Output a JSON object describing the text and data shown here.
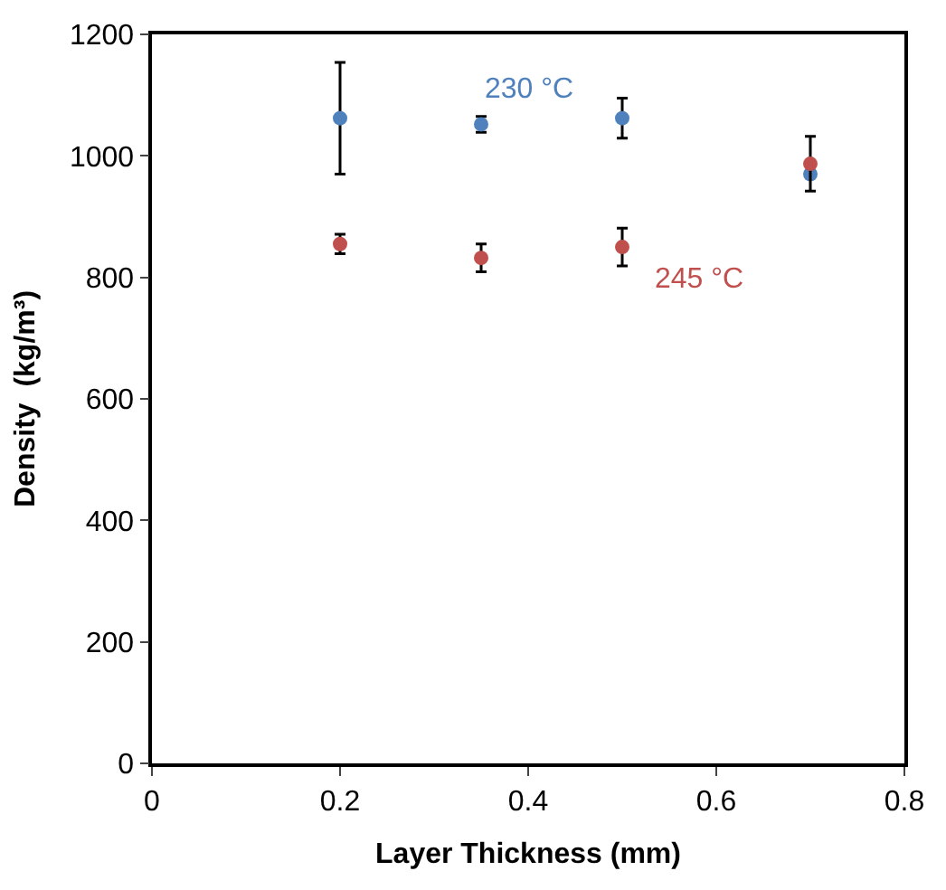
{
  "chart_data": {
    "type": "scatter",
    "xlabel": "Layer Thickness (mm)",
    "ylabel": "Density  (kg/m³)",
    "x": [
      0.2,
      0.35,
      0.5,
      0.7
    ],
    "series": [
      {
        "color": "#4f81bd",
        "values": [
          1062,
          1052,
          1062,
          970
        ],
        "errors": [
          92,
          13,
          33,
          null
        ]
      },
      {
        "color": "#c0504d",
        "values": [
          855,
          832,
          850,
          987
        ],
        "errors": [
          16,
          23,
          31,
          45
        ]
      }
    ],
    "annotations": [
      "230 °C",
      "245 °C"
    ],
    "xlim": [
      0,
      0.8
    ],
    "xticks": [
      0,
      0.2,
      0.4,
      0.6,
      0.8
    ],
    "ylim": [
      0,
      1200
    ],
    "yticks": [
      0,
      200,
      400,
      600,
      800,
      1000,
      1200
    ],
    "legend": false,
    "marker": "circle"
  }
}
